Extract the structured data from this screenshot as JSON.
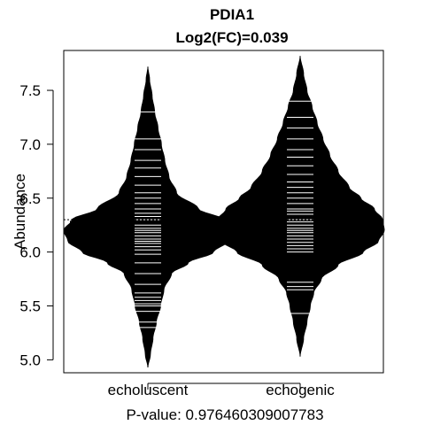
{
  "chart_data": {
    "type": "beanplot",
    "title": "PDIA1",
    "subtitle": "Log2(FC)=0.039",
    "ylabel": "Abundance",
    "xlabel": "P-value: 0.976460309007783",
    "categories": [
      "echoluscent",
      "echogenic"
    ],
    "ylim": [
      4.88,
      7.87
    ],
    "yticks": [
      "5.0",
      "5.5",
      "6.0",
      "6.5",
      "7.0",
      "7.5"
    ],
    "grand_mean": 6.3,
    "series": [
      {
        "group": "echoluscent",
        "mean": 6.28,
        "ymin": 4.93,
        "ymax": 7.72,
        "density": [
          [
            4.93,
            0.0
          ],
          [
            5.05,
            0.03
          ],
          [
            5.2,
            0.06
          ],
          [
            5.35,
            0.1
          ],
          [
            5.5,
            0.15
          ],
          [
            5.65,
            0.19
          ],
          [
            5.8,
            0.28
          ],
          [
            5.9,
            0.48
          ],
          [
            6.0,
            0.78
          ],
          [
            6.1,
            0.95
          ],
          [
            6.2,
            1.0
          ],
          [
            6.3,
            0.9
          ],
          [
            6.4,
            0.6
          ],
          [
            6.55,
            0.34
          ],
          [
            6.7,
            0.25
          ],
          [
            6.85,
            0.2
          ],
          [
            7.0,
            0.16
          ],
          [
            7.15,
            0.12
          ],
          [
            7.3,
            0.08
          ],
          [
            7.45,
            0.05
          ],
          [
            7.6,
            0.02
          ],
          [
            7.72,
            0.0
          ]
        ],
        "observations": [
          5.3,
          5.35,
          5.45,
          5.5,
          5.52,
          5.55,
          5.58,
          5.62,
          5.7,
          5.8,
          5.9,
          5.98,
          6.02,
          6.05,
          6.08,
          6.1,
          6.12,
          6.15,
          6.18,
          6.2,
          6.22,
          6.25,
          6.28,
          6.3,
          6.33,
          6.36,
          6.4,
          6.45,
          6.5,
          6.55,
          6.62,
          6.7,
          6.78,
          6.85,
          6.95,
          7.05,
          7.3
        ]
      },
      {
        "group": "echogenic",
        "mean": 6.32,
        "ymin": 5.03,
        "ymax": 7.82,
        "density": [
          [
            5.03,
            0.0
          ],
          [
            5.2,
            0.04
          ],
          [
            5.35,
            0.08
          ],
          [
            5.5,
            0.12
          ],
          [
            5.62,
            0.16
          ],
          [
            5.75,
            0.25
          ],
          [
            5.88,
            0.45
          ],
          [
            6.0,
            0.75
          ],
          [
            6.1,
            0.93
          ],
          [
            6.2,
            1.0
          ],
          [
            6.3,
            0.98
          ],
          [
            6.4,
            0.88
          ],
          [
            6.5,
            0.72
          ],
          [
            6.6,
            0.58
          ],
          [
            6.75,
            0.45
          ],
          [
            6.9,
            0.35
          ],
          [
            7.05,
            0.27
          ],
          [
            7.2,
            0.2
          ],
          [
            7.35,
            0.14
          ],
          [
            7.5,
            0.08
          ],
          [
            7.65,
            0.04
          ],
          [
            7.82,
            0.0
          ]
        ],
        "observations": [
          5.43,
          5.65,
          5.68,
          5.72,
          6.0,
          6.03,
          6.06,
          6.09,
          6.12,
          6.15,
          6.18,
          6.2,
          6.22,
          6.25,
          6.28,
          6.3,
          6.32,
          6.35,
          6.38,
          6.4,
          6.45,
          6.5,
          6.55,
          6.6,
          6.65,
          6.72,
          6.8,
          6.88,
          6.95,
          7.05,
          7.15,
          7.25,
          7.4
        ]
      }
    ]
  }
}
